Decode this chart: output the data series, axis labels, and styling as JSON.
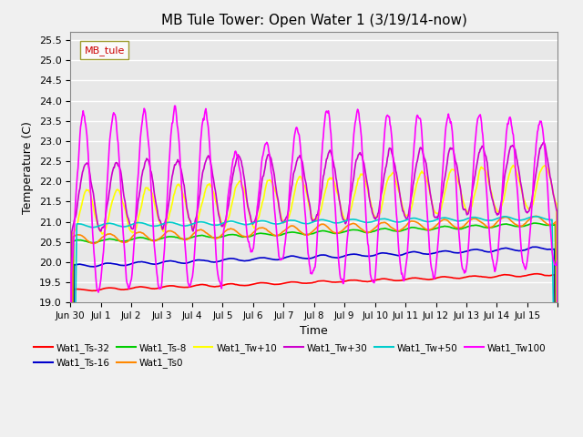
{
  "title": "MB Tule Tower: Open Water 1 (3/19/14-now)",
  "xlabel": "Time",
  "ylabel": "Temperature (C)",
  "ylim": [
    19.0,
    25.7
  ],
  "yticks": [
    19.0,
    19.5,
    20.0,
    20.5,
    21.0,
    21.5,
    22.0,
    22.5,
    23.0,
    23.5,
    24.0,
    24.5,
    25.0,
    25.5
  ],
  "legend_label": "MB_tule",
  "xtick_positions": [
    0,
    1,
    2,
    3,
    4,
    5,
    6,
    7,
    8,
    9,
    10,
    11,
    12,
    13,
    14,
    15,
    16
  ],
  "xtick_labels": [
    "Jun 30",
    "Jul 1",
    "Jul 2",
    "Jul 3",
    "Jul 4",
    "Jul 5",
    "Jul 6",
    "Jul 7",
    "Jul 8",
    "Jul 9",
    "Jul 10",
    "Jul 11",
    "Jul 12",
    "Jul 13",
    "Jul 14",
    "Jul 15",
    ""
  ],
  "series_colors": {
    "Wat1_Ts-32": "#ff0000",
    "Wat1_Ts-16": "#0000cc",
    "Wat1_Ts-8": "#00cc00",
    "Wat1_Ts0": "#ff8800",
    "Wat1_Tw+10": "#ffff00",
    "Wat1_Tw+30": "#cc00cc",
    "Wat1_Tw+50": "#00cccc",
    "Wat1_Tw100": "#ff00ff"
  },
  "bg_color": "#e8e8e8",
  "grid_color": "#ffffff",
  "n_days": 16
}
